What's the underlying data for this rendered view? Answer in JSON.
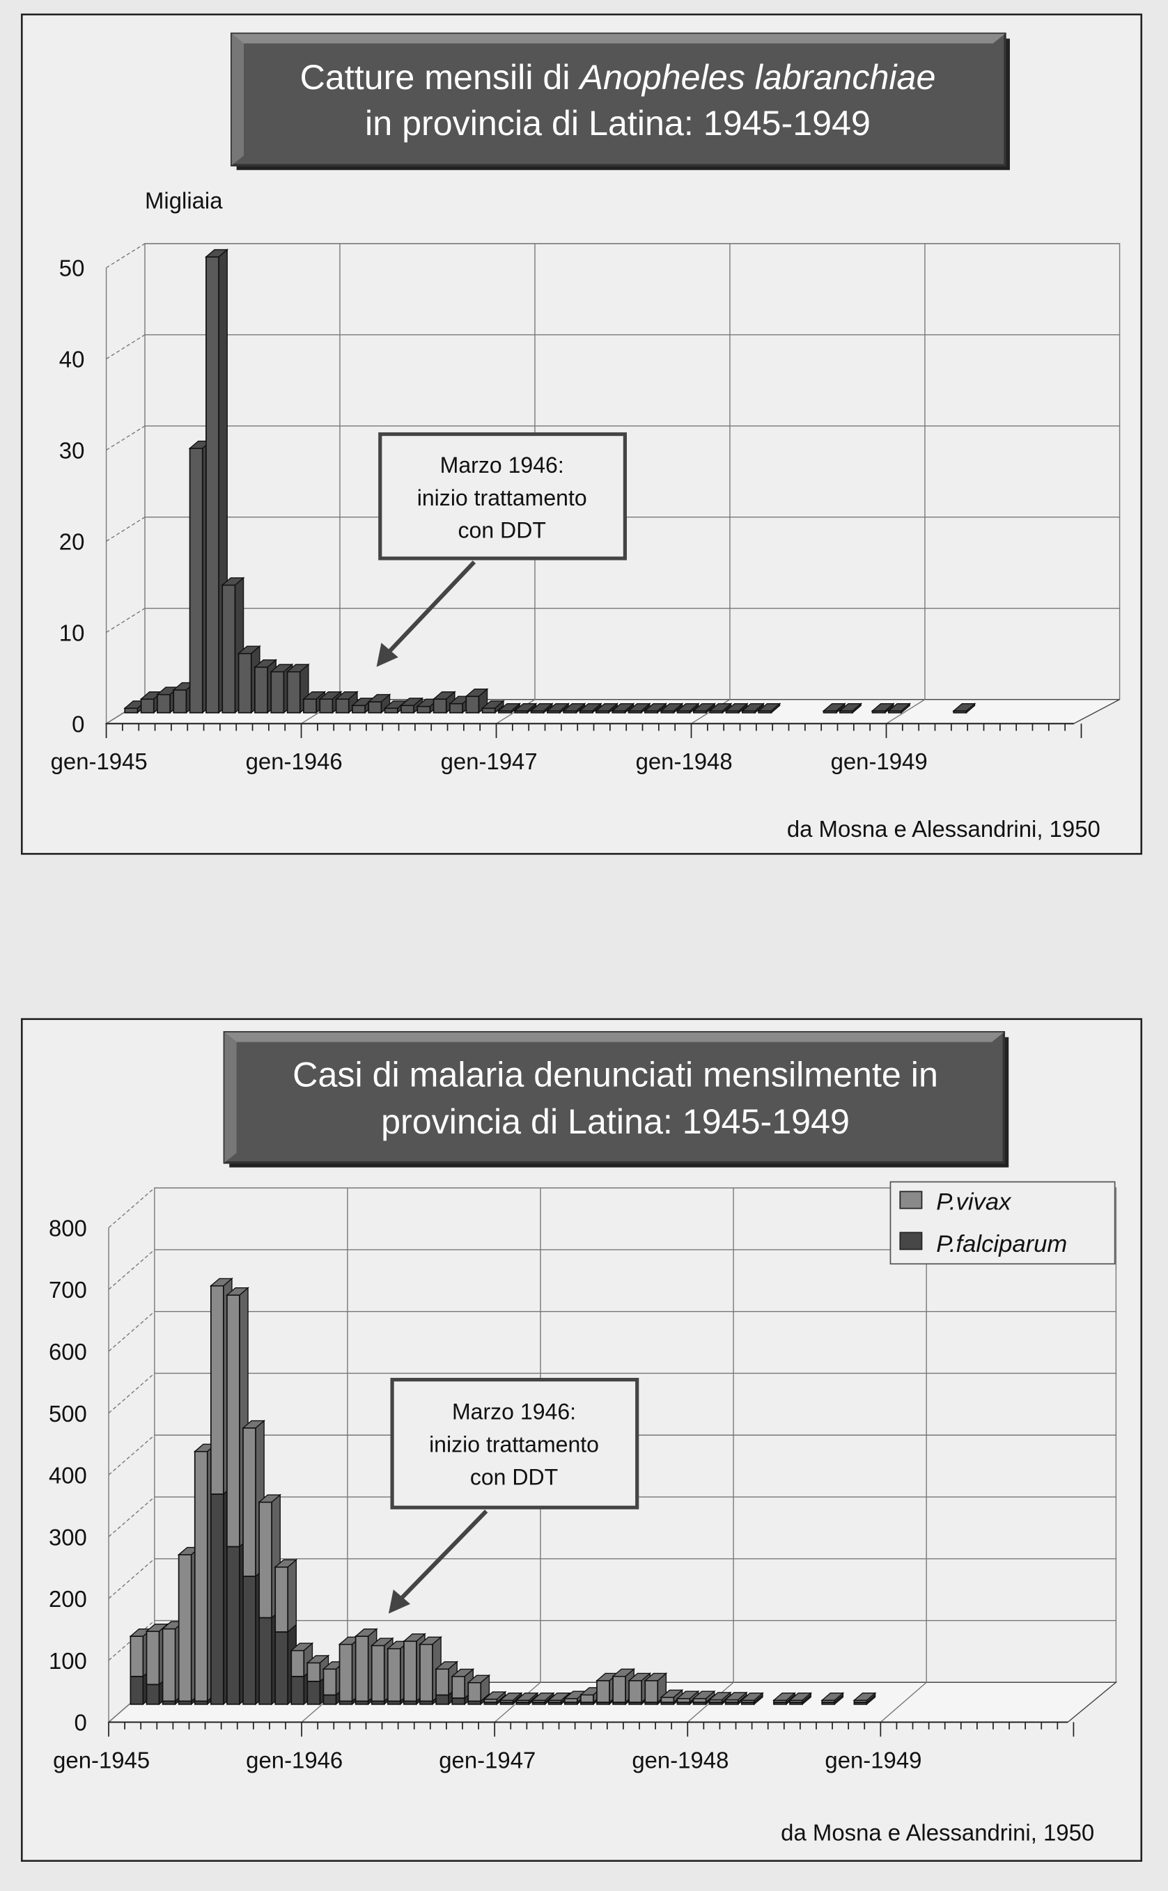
{
  "colors": {
    "page": "#e9e9e9",
    "panel": "#efefef",
    "title_bg": "#555555",
    "bar": "#5a5a5a",
    "vivax": "#8a8a8a",
    "falciparum": "#474747"
  },
  "chart_data": [
    {
      "type": "bar",
      "title_line1_prefix": "Catture mensili di ",
      "title_line1_italic": "Anopheles labranchiae",
      "title_line2": "in provincia di Latina: 1945-1949",
      "ylabel": "Migliaia",
      "ylim": [
        0,
        50
      ],
      "yticks": [
        "0",
        "10",
        "20",
        "30",
        "40",
        "50"
      ],
      "xticks": [
        "gen-1945",
        "gen-1946",
        "gen-1947",
        "gen-1948",
        "gen-1949"
      ],
      "annotation": [
        "Marzo 1946:",
        "inizio trattamento",
        "con DDT"
      ],
      "source": "da Mosna e Alessandrini, 1950",
      "x_start": "gen-1945",
      "series": [
        {
          "name": "Anopheles labranchiae",
          "values": [
            0.5,
            1.5,
            2,
            2.5,
            29,
            50,
            14,
            6.5,
            5,
            4.5,
            4.5,
            1.5,
            1.5,
            1.5,
            0.8,
            1.2,
            0.5,
            0.8,
            0.7,
            1.5,
            1,
            1.8,
            0.5,
            0.2,
            0.2,
            0.2,
            0.2,
            0.2,
            0.2,
            0.2,
            0.2,
            0.2,
            0.2,
            0.2,
            0.2,
            0.2,
            0.2,
            0.2,
            0.2,
            0.2,
            null,
            null,
            null,
            0.2,
            0.2,
            null,
            0.2,
            0.2,
            null,
            null,
            null,
            0.2,
            null,
            null,
            null,
            null,
            null,
            null,
            null,
            null
          ]
        }
      ]
    },
    {
      "type": "bar",
      "stacked": true,
      "title_line1": "Casi di malaria denunciati mensilmente in",
      "title_line2": "provincia di Latina: 1945-1949",
      "ylim": [
        0,
        800
      ],
      "yticks": [
        "0",
        "100",
        "200",
        "300",
        "400",
        "500",
        "600",
        "700",
        "800"
      ],
      "xticks": [
        "gen-1945",
        "gen-1946",
        "gen-1947",
        "gen-1948",
        "gen-1949"
      ],
      "annotation": [
        "Marzo 1946:",
        "inizio trattamento",
        "con DDT"
      ],
      "source": "da Mosna e Alessandrini, 1950",
      "legend_position": "top-right",
      "series": [
        {
          "name": "P.vivax",
          "values": [
            65,
            86,
            117,
            237,
            404,
            337,
            407,
            240,
            187,
            105,
            42,
            30,
            42,
            92,
            105,
            90,
            85,
            97,
            92,
            42,
            35,
            30,
            5,
            3,
            3,
            3,
            3,
            6,
            12,
            35,
            42,
            35,
            35,
            8,
            6,
            6,
            4,
            4,
            3,
            null,
            3,
            3,
            null,
            3,
            null,
            3,
            null,
            null,
            null,
            null,
            null,
            null,
            null,
            null,
            null,
            null,
            null,
            null,
            null,
            null
          ]
        },
        {
          "name": "P.falciparum",
          "values": [
            45,
            32,
            5,
            5,
            5,
            340,
            255,
            207,
            140,
            117,
            45,
            37,
            15,
            5,
            5,
            5,
            5,
            5,
            5,
            15,
            10,
            5,
            2,
            2,
            2,
            2,
            2,
            2,
            3,
            2,
            3,
            2,
            2,
            2,
            2,
            2,
            1,
            1,
            1,
            null,
            1,
            1,
            null,
            1,
            null,
            1,
            null,
            null,
            null,
            null,
            null,
            null,
            null,
            null,
            null,
            null,
            null,
            null,
            null,
            null
          ]
        }
      ]
    }
  ]
}
